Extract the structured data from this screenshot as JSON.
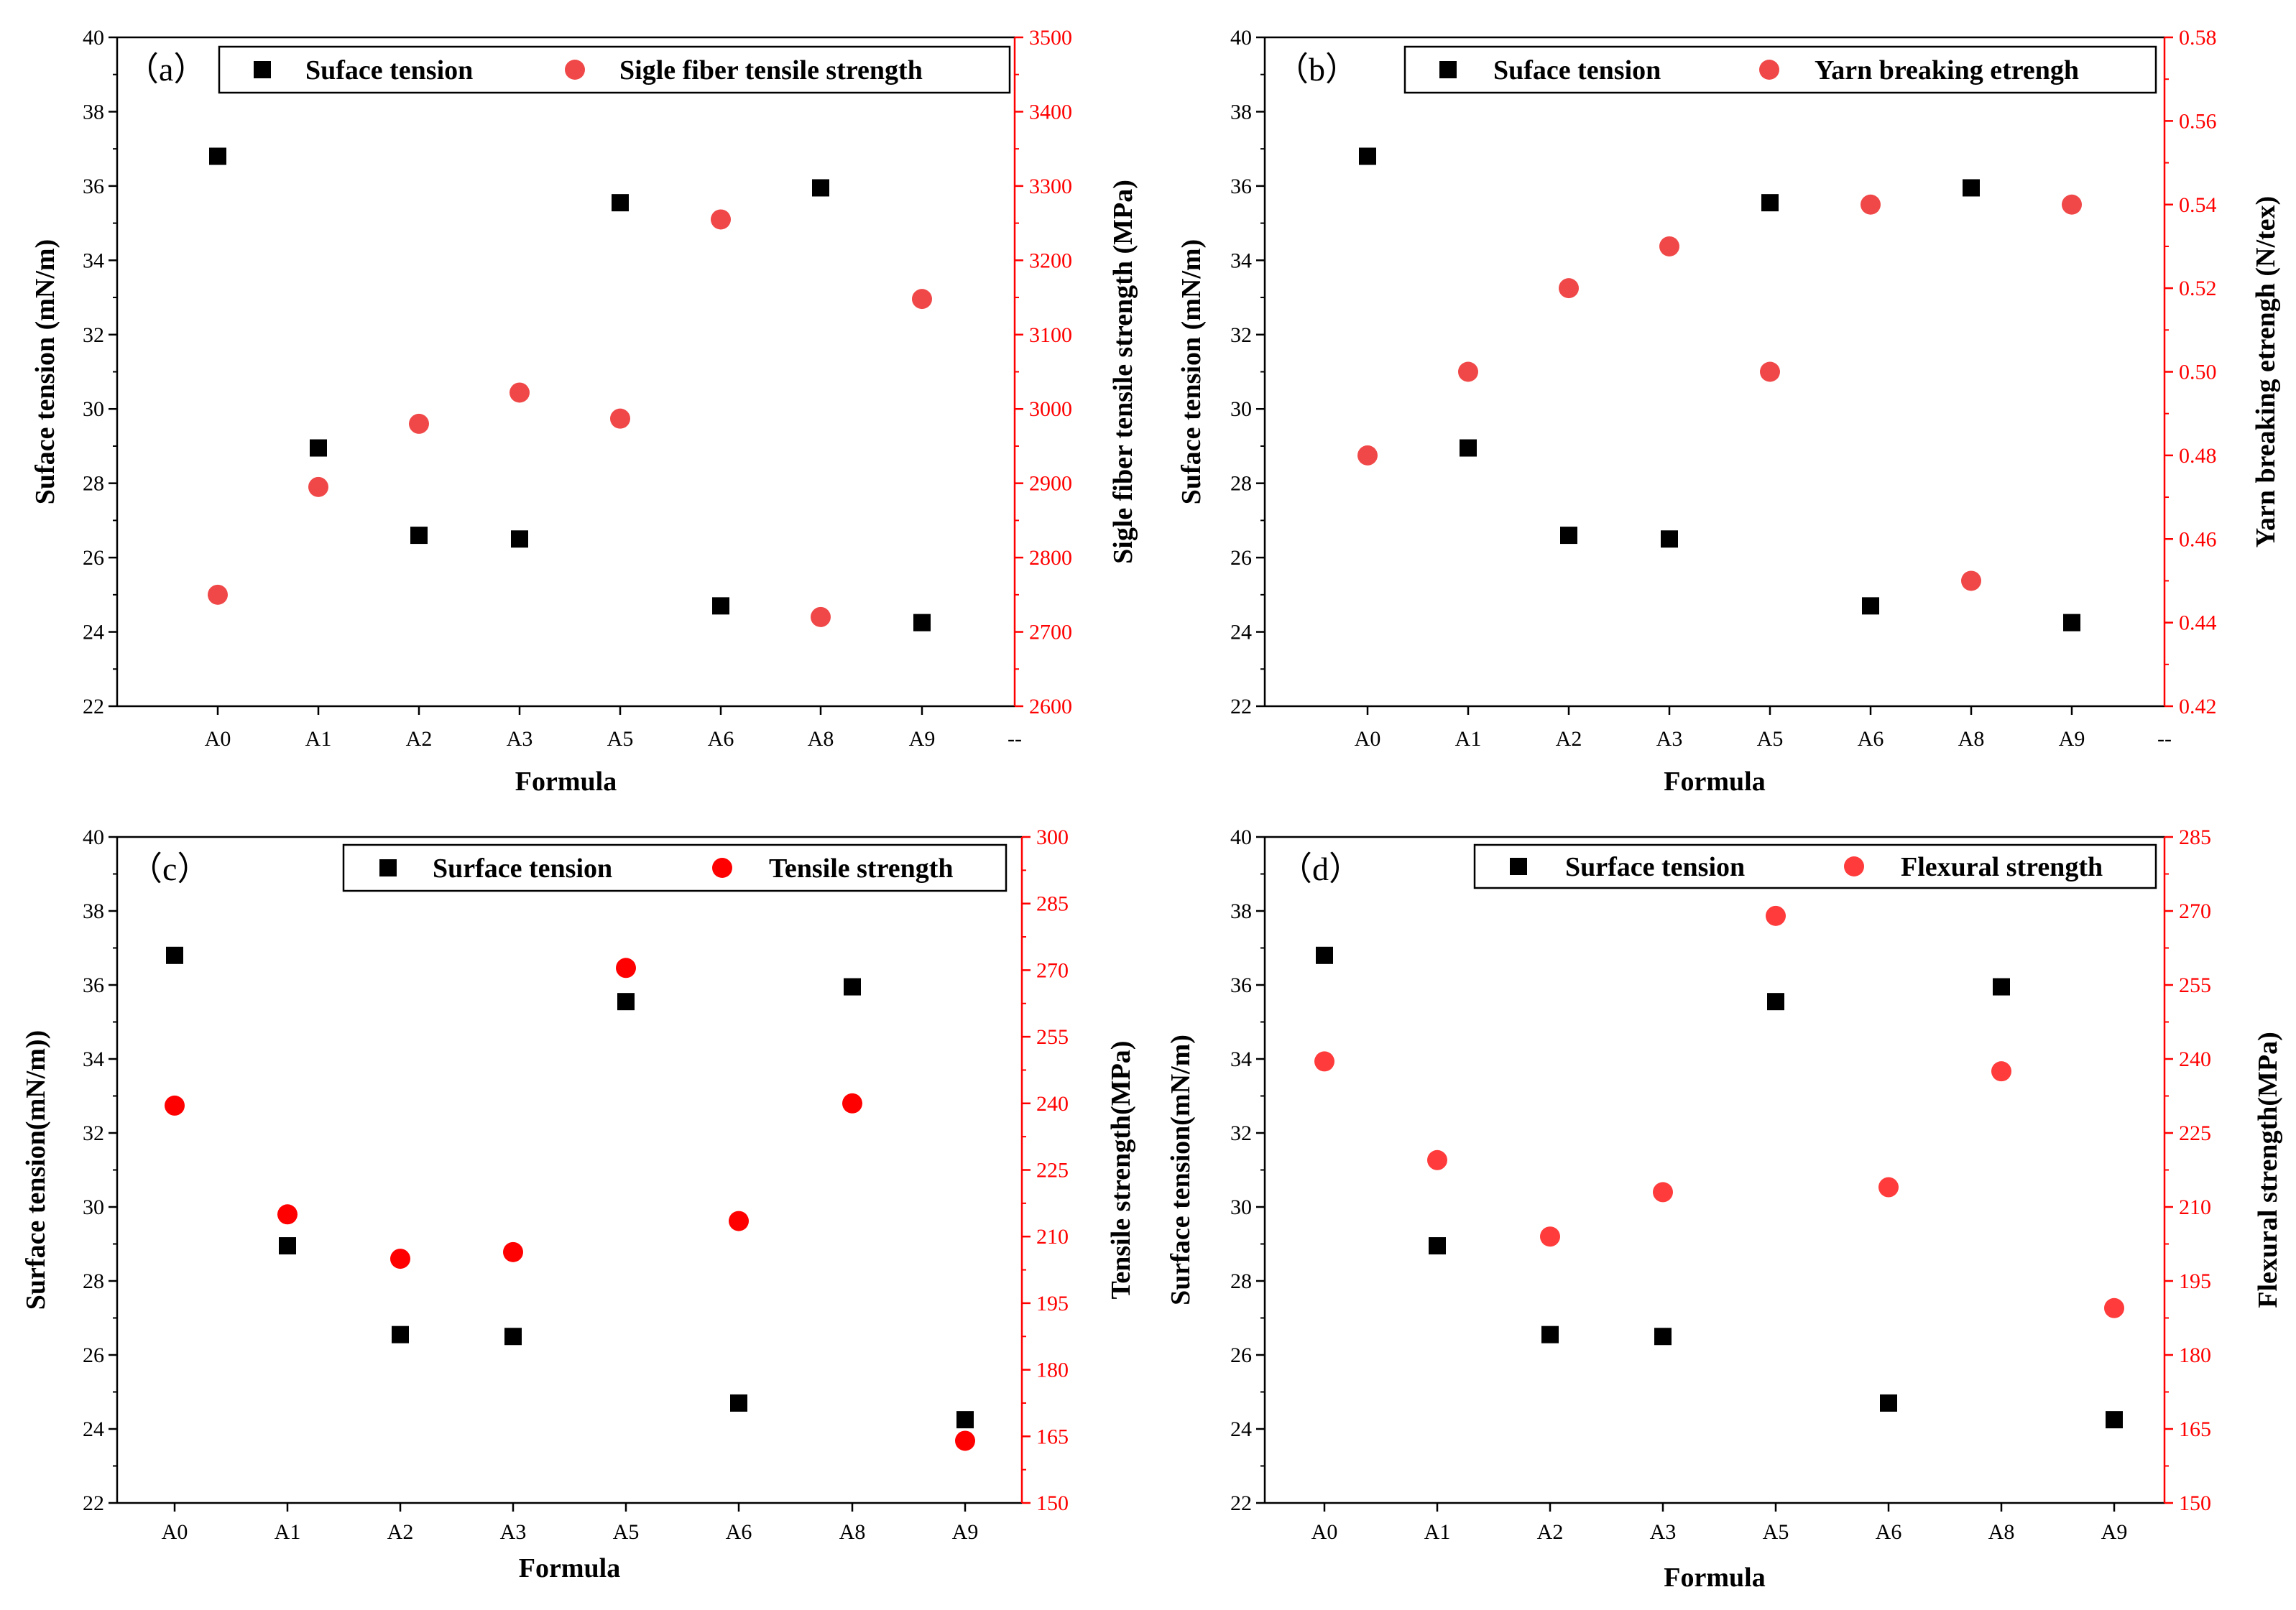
{
  "chart_data": [
    {
      "type": "scatter",
      "panel_label": "（a）",
      "categories": [
        "A0",
        "A1",
        "A2",
        "A3",
        "A5",
        "A6",
        "A8",
        "A9",
        "--"
      ],
      "xlabel": "Formula",
      "ylabel": "Suface tension (mN/m)",
      "y2label": "Sigle fiber tensile strength (MPa)",
      "ylim": [
        22,
        40
      ],
      "y2lim": [
        2600,
        3500
      ],
      "yticks": [
        "22",
        "24",
        "26",
        "28",
        "30",
        "32",
        "34",
        "36",
        "38",
        "40"
      ],
      "y2ticks": [
        "2600",
        "2700",
        "2800",
        "2900",
        "3000",
        "3100",
        "3200",
        "3300",
        "3400",
        "3500"
      ],
      "series": [
        {
          "name": "Suface tension",
          "axis": "left",
          "marker": "square",
          "color": "#000000",
          "x": [
            "A0",
            "A1",
            "A2",
            "A3",
            "A5",
            "A6",
            "A8",
            "A9"
          ],
          "values": [
            36.8,
            28.95,
            26.6,
            26.5,
            35.55,
            24.7,
            35.95,
            24.25
          ]
        },
        {
          "name": "Sigle fiber tensile strength",
          "axis": "right",
          "marker": "circle",
          "color": "#f04848",
          "x": [
            "A0",
            "A1",
            "A2",
            "A3",
            "A5",
            "A6",
            "A8",
            "A9"
          ],
          "values": [
            2750,
            2895,
            2980,
            3022,
            2987,
            3255,
            2720,
            3148
          ]
        }
      ],
      "legend": "top-right",
      "right_axis_color": "#ff0000"
    },
    {
      "type": "scatter",
      "panel_label": "（b）",
      "categories": [
        "A0",
        "A1",
        "A2",
        "A3",
        "A5",
        "A6",
        "A8",
        "A9",
        "--"
      ],
      "xlabel": "Formula",
      "ylabel": "Suface tension (mN/m)",
      "y2label": "Yarn breaking etrengh (N/tex)",
      "ylim": [
        22,
        40
      ],
      "y2lim": [
        0.42,
        0.58
      ],
      "yticks": [
        "22",
        "24",
        "26",
        "28",
        "30",
        "32",
        "34",
        "36",
        "38",
        "40"
      ],
      "y2ticks": [
        "0.42",
        "0.44",
        "0.46",
        "0.48",
        "0.50",
        "0.52",
        "0.54",
        "0.56",
        "0.58"
      ],
      "series": [
        {
          "name": "Suface tension",
          "axis": "left",
          "marker": "square",
          "color": "#000000",
          "x": [
            "A0",
            "A1",
            "A2",
            "A3",
            "A5",
            "A6",
            "A8",
            "A9"
          ],
          "values": [
            36.8,
            28.95,
            26.6,
            26.5,
            35.55,
            24.7,
            35.95,
            24.25
          ]
        },
        {
          "name": "Yarn breaking etrengh",
          "axis": "right",
          "marker": "circle",
          "color": "#f04848",
          "x": [
            "A0",
            "A1",
            "A2",
            "A3",
            "A5",
            "A6",
            "A8",
            "A9"
          ],
          "values": [
            0.48,
            0.5,
            0.52,
            0.53,
            0.5,
            0.54,
            0.45,
            0.54
          ]
        }
      ],
      "legend": "top-right",
      "right_axis_color": "#ff0000"
    },
    {
      "type": "scatter",
      "panel_label": "（c）",
      "categories": [
        "A0",
        "A1",
        "A2",
        "A3",
        "A5",
        "A6",
        "A8",
        "A9"
      ],
      "xlabel": "Formula",
      "ylabel": "Surface tension(mN/m))",
      "y2label": "Tensile strength(MPa)",
      "ylim": [
        22,
        40
      ],
      "y2lim": [
        150,
        300
      ],
      "yticks": [
        "22",
        "24",
        "26",
        "28",
        "30",
        "32",
        "34",
        "36",
        "38",
        "40"
      ],
      "y2ticks": [
        "150",
        "165",
        "180",
        "195",
        "210",
        "225",
        "240",
        "255",
        "270",
        "285",
        "300"
      ],
      "series": [
        {
          "name": "Surface tension",
          "axis": "left",
          "marker": "square",
          "color": "#000000",
          "x": [
            "A0",
            "A1",
            "A2",
            "A3",
            "A5",
            "A6",
            "A8",
            "A9"
          ],
          "values": [
            36.8,
            28.95,
            26.55,
            26.5,
            35.55,
            24.7,
            35.95,
            24.25
          ]
        },
        {
          "name": "Tensile strength",
          "axis": "right",
          "marker": "circle",
          "color": "#ff0000",
          "x": [
            "A0",
            "A1",
            "A2",
            "A3",
            "A5",
            "A6",
            "A8",
            "A9"
          ],
          "values": [
            239.5,
            215,
            205,
            206.5,
            270.5,
            213.5,
            240,
            164
          ]
        }
      ],
      "legend": "top-right",
      "right_axis_color": "#ff0000"
    },
    {
      "type": "scatter",
      "panel_label": "（d）",
      "categories": [
        "A0",
        "A1",
        "A2",
        "A3",
        "A5",
        "A6",
        "A8",
        "A9"
      ],
      "xlabel": "Formula",
      "ylabel": "Surface tension(mN/m)",
      "y2label": "Flexural strength(MPa)",
      "ylim": [
        22,
        40
      ],
      "y2lim": [
        150,
        285
      ],
      "yticks": [
        "22",
        "24",
        "26",
        "28",
        "30",
        "32",
        "34",
        "36",
        "38",
        "40"
      ],
      "y2ticks": [
        "150",
        "165",
        "180",
        "195",
        "210",
        "225",
        "240",
        "255",
        "270",
        "285"
      ],
      "series": [
        {
          "name": "Surface tension",
          "axis": "left",
          "marker": "square",
          "color": "#000000",
          "x": [
            "A0",
            "A1",
            "A2",
            "A3",
            "A5",
            "A6",
            "A8",
            "A9"
          ],
          "values": [
            36.8,
            28.95,
            26.55,
            26.5,
            35.55,
            24.7,
            35.95,
            24.25
          ]
        },
        {
          "name": "Flexural strength",
          "axis": "right",
          "marker": "circle",
          "color": "#ff3b3b",
          "x": [
            "A0",
            "A1",
            "A2",
            "A3",
            "A5",
            "A6",
            "A8",
            "A9"
          ],
          "values": [
            239.5,
            219.5,
            204,
            213,
            269,
            214,
            237.5,
            189.5
          ]
        }
      ],
      "legend": "top-right",
      "right_axis_color": "#ff0000"
    }
  ]
}
